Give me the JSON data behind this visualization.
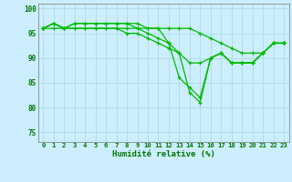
{
  "title": "",
  "xlabel": "Humidité relative (%)",
  "background_color": "#cceeff",
  "grid_color": "#aadddd",
  "line_color": "#00bb00",
  "xlim": [
    -0.5,
    23.5
  ],
  "ylim": [
    73,
    101
  ],
  "yticks": [
    75,
    80,
    85,
    90,
    95,
    100
  ],
  "xticks": [
    0,
    1,
    2,
    3,
    4,
    5,
    6,
    7,
    8,
    9,
    10,
    11,
    12,
    13,
    14,
    15,
    16,
    17,
    18,
    19,
    20,
    21,
    22,
    23
  ],
  "series": [
    [
      96,
      97,
      96,
      97,
      97,
      97,
      97,
      97,
      97,
      97,
      96,
      96,
      93,
      91,
      83,
      81,
      90,
      91,
      89,
      89,
      89,
      91,
      93,
      93
    ],
    [
      96,
      97,
      96,
      97,
      97,
      97,
      97,
      97,
      97,
      96,
      95,
      94,
      93,
      86,
      84,
      82,
      90,
      91,
      89,
      89,
      89,
      91,
      93,
      93
    ],
    [
      96,
      97,
      96,
      96,
      96,
      96,
      96,
      96,
      95,
      95,
      94,
      93,
      92,
      91,
      89,
      89,
      90,
      91,
      89,
      89,
      89,
      91,
      93,
      93
    ],
    [
      96,
      96,
      96,
      96,
      96,
      96,
      96,
      96,
      96,
      96,
      96,
      96,
      96,
      96,
      96,
      95,
      94,
      93,
      92,
      91,
      91,
      91,
      93,
      93
    ]
  ],
  "xlabel_fontsize": 6.5,
  "tick_fontsize": 5.2,
  "linewidth": 0.9,
  "markersize": 2.5
}
